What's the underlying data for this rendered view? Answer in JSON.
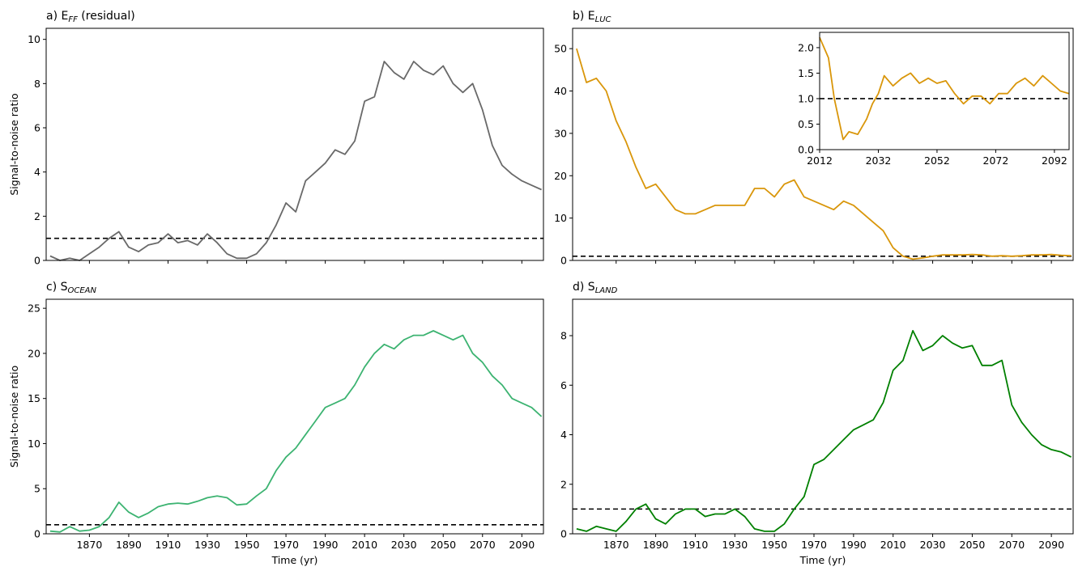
{
  "chart_data": [
    {
      "type": "line",
      "title": {
        "prefix": "a) E",
        "sub": "FF",
        "suffix": " (residual)"
      },
      "ylabel": "Signal-to-noise ratio",
      "x": [
        1850,
        1855,
        1860,
        1865,
        1870,
        1875,
        1880,
        1885,
        1890,
        1895,
        1900,
        1905,
        1910,
        1915,
        1920,
        1925,
        1930,
        1935,
        1940,
        1945,
        1950,
        1955,
        1960,
        1965,
        1970,
        1975,
        1980,
        1985,
        1990,
        1995,
        2000,
        2005,
        2010,
        2015,
        2020,
        2025,
        2030,
        2035,
        2040,
        2045,
        2050,
        2055,
        2060,
        2065,
        2070,
        2075,
        2080,
        2085,
        2090,
        2095,
        2100
      ],
      "series": [
        {
          "color": "#696969",
          "values": [
            0.2,
            0.0,
            0.1,
            0.0,
            0.3,
            0.6,
            1.0,
            1.3,
            0.6,
            0.4,
            0.7,
            0.8,
            1.2,
            0.8,
            0.9,
            0.7,
            1.2,
            0.8,
            0.3,
            0.1,
            0.1,
            0.3,
            0.8,
            1.6,
            2.6,
            2.2,
            3.6,
            4.0,
            4.4,
            5.0,
            4.8,
            5.4,
            7.2,
            7.4,
            9.0,
            8.5,
            8.2,
            9.0,
            8.6,
            8.4,
            8.8,
            8.0,
            7.6,
            8.0,
            6.8,
            5.2,
            4.3,
            3.9,
            3.6,
            3.4,
            3.2
          ]
        }
      ],
      "xlim": [
        1848,
        2101
      ],
      "xticks": [
        1870,
        1890,
        1910,
        1930,
        1950,
        1970,
        1990,
        2010,
        2030,
        2050,
        2070,
        2090
      ],
      "xtick_labels": false,
      "ylim": [
        0,
        10.5
      ],
      "yticks": [
        0,
        2,
        4,
        6,
        8,
        10
      ],
      "hline": 1
    },
    {
      "type": "line",
      "title": {
        "prefix": "b) E",
        "sub": "LUC",
        "suffix": ""
      },
      "x": [
        1850,
        1855,
        1860,
        1865,
        1870,
        1875,
        1880,
        1885,
        1890,
        1895,
        1900,
        1905,
        1910,
        1915,
        1920,
        1925,
        1930,
        1935,
        1940,
        1945,
        1950,
        1955,
        1960,
        1965,
        1970,
        1975,
        1980,
        1985,
        1990,
        1995,
        2000,
        2005,
        2010,
        2015,
        2020,
        2025,
        2030,
        2035,
        2040,
        2045,
        2050,
        2055,
        2060,
        2065,
        2070,
        2075,
        2080,
        2085,
        2090,
        2095,
        2100
      ],
      "series": [
        {
          "color": "#d9960a",
          "values": [
            50,
            42,
            43,
            40,
            33,
            28,
            22,
            17,
            18,
            15,
            12,
            11,
            11,
            12,
            13,
            13,
            13,
            13,
            17,
            17,
            15,
            18,
            19,
            15,
            14,
            13,
            12,
            14,
            13,
            11,
            9,
            7,
            3,
            1,
            0.3,
            0.6,
            1.0,
            1.3,
            1.3,
            1.3,
            1.4,
            1.3,
            1.0,
            1.1,
            1.0,
            1.1,
            1.3,
            1.3,
            1.4,
            1.2,
            1.1
          ]
        }
      ],
      "xlim": [
        1848,
        2101
      ],
      "xticks": [
        1870,
        1890,
        1910,
        1930,
        1950,
        1970,
        1990,
        2010,
        2030,
        2050,
        2070,
        2090
      ],
      "xtick_labels": false,
      "ylim": [
        0,
        54.8
      ],
      "yticks": [
        0,
        10,
        20,
        30,
        40,
        50
      ],
      "hline": 1
    },
    {
      "type": "line",
      "title": {
        "prefix": "c) S",
        "sub": "OCEAN",
        "suffix": ""
      },
      "ylabel": "Signal-to-noise ratio",
      "xlabel": "Time (yr)",
      "x": [
        1850,
        1855,
        1860,
        1865,
        1870,
        1875,
        1880,
        1885,
        1890,
        1895,
        1900,
        1905,
        1910,
        1915,
        1920,
        1925,
        1930,
        1935,
        1940,
        1945,
        1950,
        1955,
        1960,
        1965,
        1970,
        1975,
        1980,
        1985,
        1990,
        1995,
        2000,
        2005,
        2010,
        2015,
        2020,
        2025,
        2030,
        2035,
        2040,
        2045,
        2050,
        2055,
        2060,
        2065,
        2070,
        2075,
        2080,
        2085,
        2090,
        2095,
        2100
      ],
      "series": [
        {
          "color": "#3cb371",
          "values": [
            0.3,
            0.2,
            0.8,
            0.3,
            0.4,
            0.8,
            1.8,
            3.5,
            2.4,
            1.8,
            2.3,
            3.0,
            3.3,
            3.4,
            3.3,
            3.6,
            4.0,
            4.2,
            4.0,
            3.2,
            3.3,
            4.2,
            5.0,
            7.0,
            8.5,
            9.5,
            11,
            12.5,
            14,
            14.5,
            15,
            16.5,
            18.5,
            20,
            21,
            20.5,
            21.5,
            22,
            22,
            22.5,
            22,
            21.5,
            22,
            20,
            19,
            17.5,
            16.5,
            15,
            14.5,
            14,
            13
          ]
        }
      ],
      "xlim": [
        1848,
        2101
      ],
      "xticks": [
        1870,
        1890,
        1910,
        1930,
        1950,
        1970,
        1990,
        2010,
        2030,
        2050,
        2070,
        2090
      ],
      "xtick_labels": true,
      "ylim": [
        0,
        26
      ],
      "yticks": [
        0,
        5,
        10,
        15,
        20,
        25
      ],
      "hline": 1
    },
    {
      "type": "line",
      "title": {
        "prefix": "d) S",
        "sub": "LAND",
        "suffix": ""
      },
      "xlabel": "Time (yr)",
      "x": [
        1850,
        1855,
        1860,
        1865,
        1870,
        1875,
        1880,
        1885,
        1890,
        1895,
        1900,
        1905,
        1910,
        1915,
        1920,
        1925,
        1930,
        1935,
        1940,
        1945,
        1950,
        1955,
        1960,
        1965,
        1970,
        1975,
        1980,
        1985,
        1990,
        1995,
        2000,
        2005,
        2010,
        2015,
        2020,
        2025,
        2030,
        2035,
        2040,
        2045,
        2050,
        2055,
        2060,
        2065,
        2070,
        2075,
        2080,
        2085,
        2090,
        2095,
        2100
      ],
      "series": [
        {
          "color": "#008000",
          "values": [
            0.2,
            0.1,
            0.3,
            0.2,
            0.1,
            0.5,
            1.0,
            1.2,
            0.6,
            0.4,
            0.8,
            1.0,
            1.0,
            0.7,
            0.8,
            0.8,
            1.0,
            0.7,
            0.2,
            0.1,
            0.1,
            0.4,
            1.0,
            1.5,
            2.8,
            3.0,
            3.4,
            3.8,
            4.2,
            4.4,
            4.6,
            5.3,
            6.6,
            7.0,
            8.2,
            7.4,
            7.6,
            8.0,
            7.7,
            7.5,
            7.6,
            6.8,
            6.8,
            7.0,
            5.2,
            4.5,
            4.0,
            3.6,
            3.4,
            3.3,
            3.1
          ]
        }
      ],
      "xlim": [
        1848,
        2101
      ],
      "xticks": [
        1870,
        1890,
        1910,
        1930,
        1950,
        1970,
        1990,
        2010,
        2030,
        2050,
        2070,
        2090
      ],
      "xtick_labels": true,
      "ylim": [
        0,
        9.47
      ],
      "yticks": [
        0,
        2,
        4,
        6,
        8
      ],
      "hline": 1
    },
    {
      "type": "line",
      "x": [
        2012,
        2015,
        2017,
        2020,
        2022,
        2025,
        2028,
        2030,
        2032,
        2034,
        2037,
        2040,
        2043,
        2046,
        2049,
        2052,
        2055,
        2058,
        2061,
        2064,
        2067,
        2070,
        2073,
        2076,
        2079,
        2082,
        2085,
        2088,
        2091,
        2094,
        2097
      ],
      "series": [
        {
          "color": "#d9960a",
          "values": [
            2.2,
            1.8,
            1.0,
            0.2,
            0.35,
            0.3,
            0.6,
            0.9,
            1.1,
            1.45,
            1.25,
            1.4,
            1.5,
            1.3,
            1.4,
            1.3,
            1.35,
            1.1,
            0.9,
            1.05,
            1.05,
            0.9,
            1.1,
            1.1,
            1.3,
            1.4,
            1.25,
            1.45,
            1.3,
            1.15,
            1.1
          ]
        }
      ],
      "xlim": [
        2012,
        2097
      ],
      "xticks": [
        2012,
        2032,
        2052,
        2072,
        2092
      ],
      "xtick_labels": true,
      "ylim": [
        0,
        2.3
      ],
      "yticks": [
        {
          "value": 0,
          "label": "0.0"
        },
        0.5,
        {
          "value": 1,
          "label": "1.0"
        },
        1.5,
        {
          "value": 2,
          "label": "2.0"
        }
      ],
      "hline": 1
    }
  ]
}
